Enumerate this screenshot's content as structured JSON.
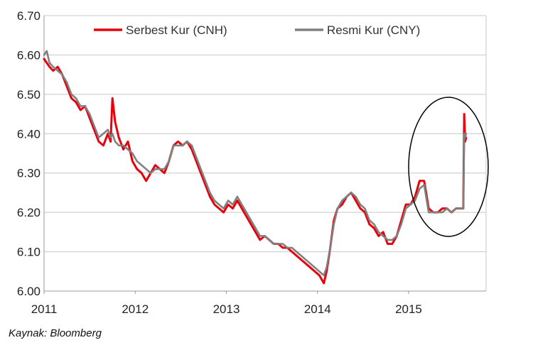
{
  "source_note": "Kaynak: Bloomberg",
  "chart_data": {
    "type": "line",
    "title": "",
    "xlabel": "",
    "ylabel": "",
    "x_ticks": [
      "2011",
      "2012",
      "2013",
      "2014",
      "2015"
    ],
    "x_tick_values": [
      2011.0,
      2012.0,
      2013.0,
      2014.0,
      2015.0
    ],
    "xlim": [
      2011.0,
      2015.85
    ],
    "y_ticks": [
      "6.00",
      "6.10",
      "6.20",
      "6.30",
      "6.40",
      "6.50",
      "6.60",
      "6.70"
    ],
    "ylim": [
      6.0,
      6.7
    ],
    "grid": "horizontal",
    "legend_position": "top",
    "annotation": "ellipse around mid-2015 to August 2015 spike",
    "series": [
      {
        "name": "Serbest Kur (CNH)",
        "color": "#e8000b",
        "x": [
          2011.0,
          2011.03,
          2011.06,
          2011.1,
          2011.15,
          2011.2,
          2011.25,
          2011.3,
          2011.35,
          2011.4,
          2011.45,
          2011.5,
          2011.55,
          2011.6,
          2011.65,
          2011.7,
          2011.73,
          2011.75,
          2011.78,
          2011.82,
          2011.87,
          2011.92,
          2011.97,
          2012.02,
          2012.07,
          2012.12,
          2012.17,
          2012.22,
          2012.27,
          2012.32,
          2012.37,
          2012.42,
          2012.47,
          2012.52,
          2012.57,
          2012.62,
          2012.67,
          2012.72,
          2012.77,
          2012.82,
          2012.87,
          2012.92,
          2012.97,
          2013.02,
          2013.07,
          2013.12,
          2013.17,
          2013.22,
          2013.27,
          2013.32,
          2013.37,
          2013.42,
          2013.47,
          2013.52,
          2013.57,
          2013.62,
          2013.67,
          2013.72,
          2013.77,
          2013.82,
          2013.87,
          2013.92,
          2013.97,
          2014.02,
          2014.07,
          2014.1,
          2014.14,
          2014.18,
          2014.22,
          2014.27,
          2014.32,
          2014.37,
          2014.42,
          2014.47,
          2014.52,
          2014.57,
          2014.62,
          2014.67,
          2014.72,
          2014.77,
          2014.82,
          2014.87,
          2014.92,
          2014.97,
          2015.02,
          2015.07,
          2015.12,
          2015.17,
          2015.22,
          2015.27,
          2015.32,
          2015.37,
          2015.42,
          2015.47,
          2015.52,
          2015.57,
          2015.6,
          2015.61,
          2015.62,
          2015.63
        ],
        "y": [
          6.59,
          6.58,
          6.57,
          6.56,
          6.57,
          6.55,
          6.52,
          6.49,
          6.48,
          6.46,
          6.47,
          6.44,
          6.41,
          6.38,
          6.37,
          6.4,
          6.38,
          6.49,
          6.43,
          6.39,
          6.36,
          6.38,
          6.33,
          6.31,
          6.3,
          6.28,
          6.3,
          6.32,
          6.31,
          6.3,
          6.33,
          6.37,
          6.38,
          6.37,
          6.38,
          6.36,
          6.33,
          6.3,
          6.27,
          6.24,
          6.22,
          6.21,
          6.2,
          6.22,
          6.21,
          6.23,
          6.21,
          6.19,
          6.17,
          6.15,
          6.13,
          6.14,
          6.13,
          6.12,
          6.12,
          6.11,
          6.11,
          6.1,
          6.09,
          6.08,
          6.07,
          6.06,
          6.05,
          6.04,
          6.02,
          6.05,
          6.11,
          6.18,
          6.21,
          6.22,
          6.24,
          6.25,
          6.23,
          6.21,
          6.2,
          6.17,
          6.16,
          6.14,
          6.15,
          6.12,
          6.12,
          6.14,
          6.18,
          6.22,
          6.22,
          6.24,
          6.28,
          6.28,
          6.21,
          6.2,
          6.2,
          6.21,
          6.21,
          6.2,
          6.21,
          6.21,
          6.21,
          6.45,
          6.38,
          6.39
        ]
      },
      {
        "name": "Resmi Kur (CNY)",
        "color": "#808080",
        "x": [
          2011.0,
          2011.03,
          2011.06,
          2011.1,
          2011.15,
          2011.2,
          2011.25,
          2011.3,
          2011.35,
          2011.4,
          2011.45,
          2011.5,
          2011.55,
          2011.6,
          2011.65,
          2011.7,
          2011.73,
          2011.75,
          2011.78,
          2011.82,
          2011.87,
          2011.92,
          2011.97,
          2012.02,
          2012.07,
          2012.12,
          2012.17,
          2012.22,
          2012.27,
          2012.32,
          2012.37,
          2012.42,
          2012.47,
          2012.52,
          2012.57,
          2012.62,
          2012.67,
          2012.72,
          2012.77,
          2012.82,
          2012.87,
          2012.92,
          2012.97,
          2013.02,
          2013.07,
          2013.12,
          2013.17,
          2013.22,
          2013.27,
          2013.32,
          2013.37,
          2013.42,
          2013.47,
          2013.52,
          2013.57,
          2013.62,
          2013.67,
          2013.72,
          2013.77,
          2013.82,
          2013.87,
          2013.92,
          2013.97,
          2014.02,
          2014.07,
          2014.1,
          2014.14,
          2014.18,
          2014.22,
          2014.27,
          2014.32,
          2014.37,
          2014.42,
          2014.47,
          2014.52,
          2014.57,
          2014.62,
          2014.67,
          2014.72,
          2014.77,
          2014.82,
          2014.87,
          2014.92,
          2014.97,
          2015.02,
          2015.07,
          2015.12,
          2015.17,
          2015.22,
          2015.27,
          2015.32,
          2015.37,
          2015.42,
          2015.47,
          2015.52,
          2015.57,
          2015.6,
          2015.61,
          2015.62,
          2015.63
        ],
        "y": [
          6.6,
          6.61,
          6.58,
          6.57,
          6.56,
          6.55,
          6.53,
          6.5,
          6.49,
          6.47,
          6.47,
          6.45,
          6.42,
          6.39,
          6.4,
          6.41,
          6.39,
          6.4,
          6.38,
          6.37,
          6.37,
          6.36,
          6.35,
          6.33,
          6.32,
          6.31,
          6.3,
          6.31,
          6.31,
          6.31,
          6.33,
          6.37,
          6.37,
          6.37,
          6.38,
          6.37,
          6.34,
          6.31,
          6.28,
          6.25,
          6.23,
          6.22,
          6.21,
          6.23,
          6.22,
          6.24,
          6.22,
          6.2,
          6.18,
          6.16,
          6.14,
          6.14,
          6.13,
          6.12,
          6.12,
          6.12,
          6.11,
          6.11,
          6.1,
          6.09,
          6.08,
          6.07,
          6.06,
          6.05,
          6.04,
          6.06,
          6.11,
          6.17,
          6.21,
          6.23,
          6.24,
          6.25,
          6.24,
          6.22,
          6.21,
          6.18,
          6.17,
          6.15,
          6.14,
          6.13,
          6.13,
          6.14,
          6.17,
          6.21,
          6.22,
          6.23,
          6.26,
          6.27,
          6.2,
          6.2,
          6.2,
          6.2,
          6.21,
          6.2,
          6.21,
          6.21,
          6.21,
          6.4,
          6.39,
          6.4
        ]
      }
    ]
  }
}
